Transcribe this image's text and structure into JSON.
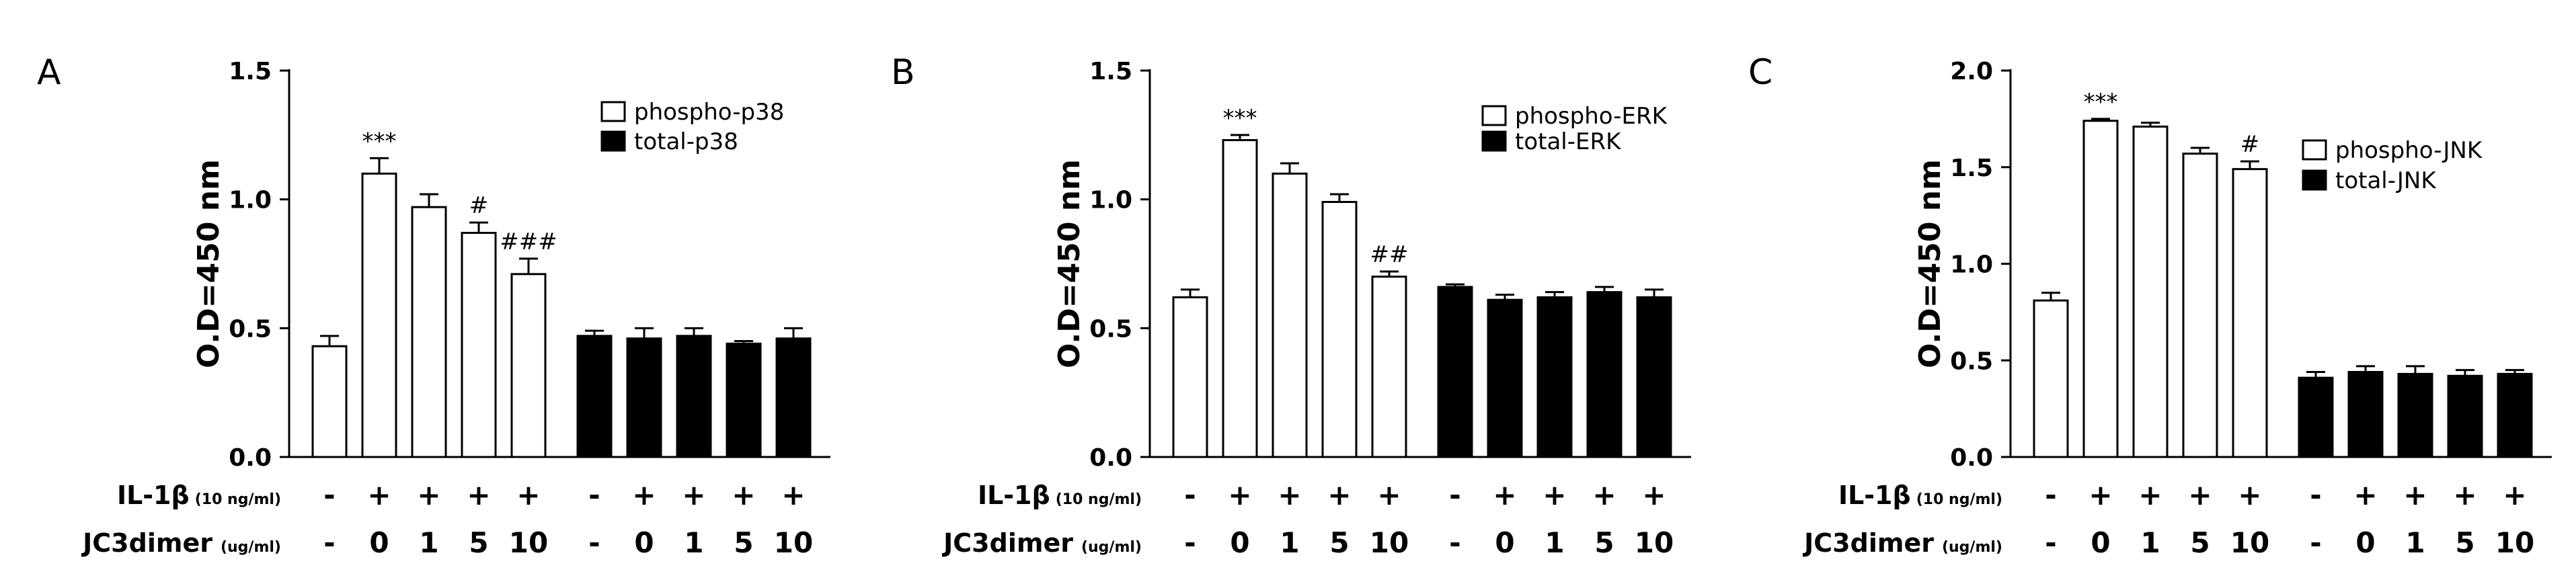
{
  "chart_data": [
    {
      "type": "bar",
      "panel_label": "A",
      "ylabel": "O.D=450 nm",
      "ylim": [
        0,
        1.5
      ],
      "yticks": [
        "0.0",
        "0.5",
        "1.0",
        "1.5"
      ],
      "legend_position": "top-right",
      "series": [
        {
          "name": "phospho-p38",
          "color": "#ffffff",
          "values": [
            0.43,
            1.1,
            0.97,
            0.87,
            0.71
          ],
          "errors": [
            0.04,
            0.06,
            0.05,
            0.04,
            0.06
          ],
          "significance": [
            "",
            "***",
            "",
            "#",
            "###"
          ]
        },
        {
          "name": "total-p38",
          "color": "#000000",
          "values": [
            0.47,
            0.46,
            0.47,
            0.44,
            0.46
          ],
          "errors": [
            0.02,
            0.04,
            0.03,
            0.01,
            0.04
          ],
          "significance": [
            "",
            "",
            "",
            "",
            ""
          ]
        }
      ]
    },
    {
      "type": "bar",
      "panel_label": "B",
      "ylabel": "O.D=450 nm",
      "ylim": [
        0,
        1.5
      ],
      "yticks": [
        "0.0",
        "0.5",
        "1.0",
        "1.5"
      ],
      "legend_position": "top-right",
      "series": [
        {
          "name": "phospho-ERK",
          "color": "#ffffff",
          "values": [
            0.62,
            1.23,
            1.1,
            0.99,
            0.7
          ],
          "errors": [
            0.03,
            0.02,
            0.04,
            0.03,
            0.02
          ],
          "significance": [
            "",
            "***",
            "",
            "",
            "##"
          ]
        },
        {
          "name": "total-ERK",
          "color": "#000000",
          "values": [
            0.66,
            0.61,
            0.62,
            0.64,
            0.62
          ],
          "errors": [
            0.01,
            0.02,
            0.02,
            0.02,
            0.03
          ],
          "significance": [
            "",
            "",
            "",
            "",
            ""
          ]
        }
      ]
    },
    {
      "type": "bar",
      "panel_label": "C",
      "ylabel": "O.D=450 nm",
      "ylim": [
        0,
        2.0
      ],
      "yticks": [
        "0.0",
        "0.5",
        "1.0",
        "1.5",
        "2.0"
      ],
      "legend_position": "top-right",
      "series": [
        {
          "name": "phospho-JNK",
          "color": "#ffffff",
          "values": [
            0.81,
            1.74,
            1.71,
            1.57,
            1.49
          ],
          "errors": [
            0.04,
            0.01,
            0.02,
            0.03,
            0.04
          ],
          "significance": [
            "",
            "***",
            "",
            "",
            "#"
          ]
        },
        {
          "name": "total-JNK",
          "color": "#000000",
          "values": [
            0.41,
            0.44,
            0.43,
            0.42,
            0.43
          ],
          "errors": [
            0.03,
            0.03,
            0.04,
            0.03,
            0.02
          ],
          "significance": [
            "",
            "",
            "",
            "",
            ""
          ]
        }
      ]
    }
  ],
  "conditions": {
    "il1b_label": "IL-1β",
    "il1b_unit": "(10 ng/ml)",
    "il1b_values": [
      "-",
      "+",
      "+",
      "+",
      "+",
      "-",
      "+",
      "+",
      "+",
      "+"
    ],
    "jc3_label": "JC3dimer",
    "jc3_unit": "(ug/ml)",
    "jc3_values": [
      "-",
      "0",
      "1",
      "5",
      "10",
      "-",
      "0",
      "1",
      "5",
      "10"
    ]
  }
}
